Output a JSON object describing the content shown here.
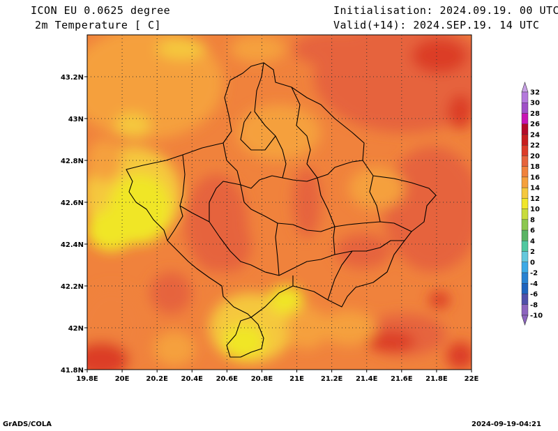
{
  "header": {
    "model": "ICON EU 0.0625 degree",
    "variable": "2m Temperature [ C]",
    "init": "Initialisation: 2024.09.19. 00 UTC",
    "valid": "Valid(+14): 2024.SEP.19. 14 UTC"
  },
  "map": {
    "lon_range": [
      19.8,
      22.0
    ],
    "lat_range": [
      41.8,
      43.4
    ],
    "x_ticks": [
      "19.8E",
      "20E",
      "20.2E",
      "20.4E",
      "20.6E",
      "20.8E",
      "21E",
      "21.2E",
      "21.4E",
      "21.6E",
      "21.8E",
      "22E"
    ],
    "y_ticks": [
      "41.8N",
      "42N",
      "42.2N",
      "42.4N",
      "42.6N",
      "42.8N",
      "43N",
      "43.2N"
    ],
    "grid": "dotted"
  },
  "colorbar": {
    "levels": [
      "32",
      "30",
      "28",
      "26",
      "24",
      "22",
      "20",
      "18",
      "16",
      "14",
      "12",
      "10",
      "8",
      "6",
      "4",
      "2",
      "0",
      "-2",
      "-4",
      "-6",
      "-8",
      "-10"
    ],
    "colors": [
      "#c8a0e6",
      "#b478dc",
      "#a050c8",
      "#c814b4",
      "#b40a28",
      "#c81e1e",
      "#dc3c28",
      "#e6643c",
      "#f0823c",
      "#f5a03c",
      "#f5c83c",
      "#f0e628",
      "#c8dc3c",
      "#8cc850",
      "#5ab464",
      "#50c8a0",
      "#64c8dc",
      "#3caae6",
      "#2882d2",
      "#1e64be",
      "#5050aa",
      "#8c64be"
    ]
  },
  "footer": {
    "left": "GrADS/COLA",
    "right": "2024-09-19-04:21"
  }
}
